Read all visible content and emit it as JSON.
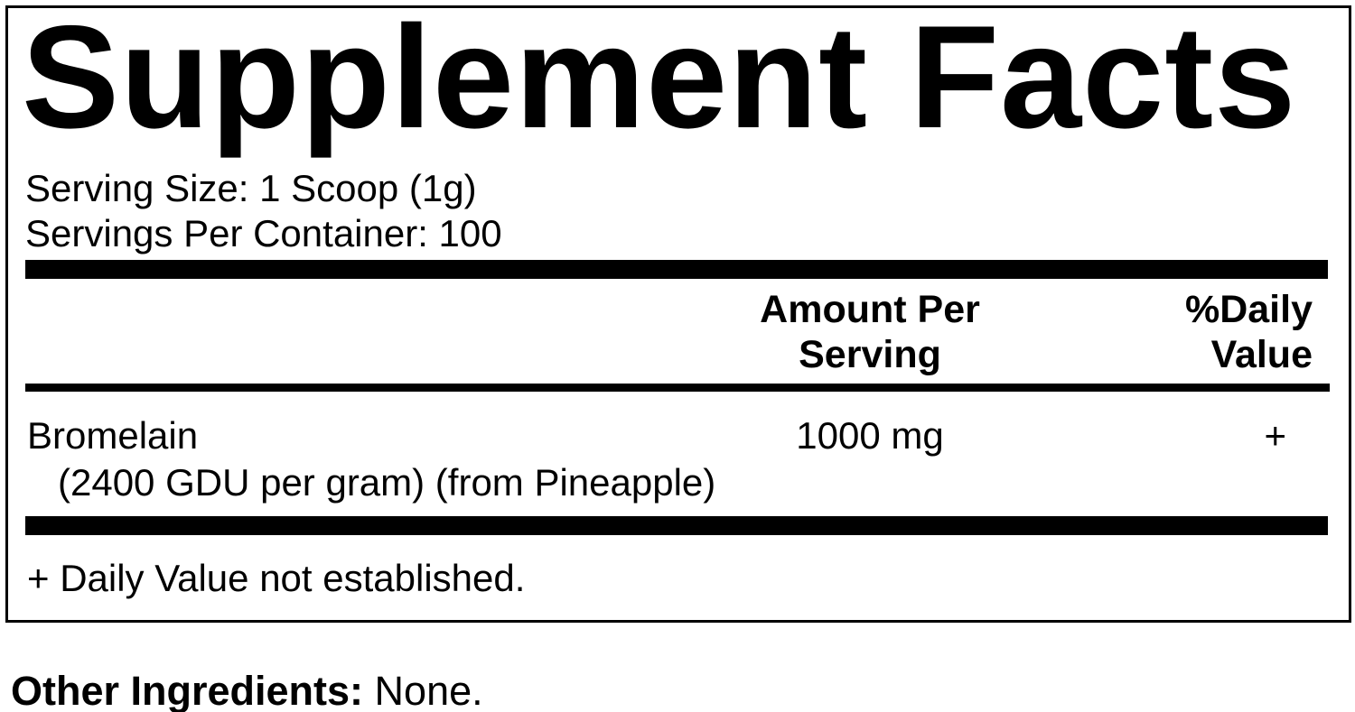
{
  "label": {
    "title": "Supplement Facts",
    "serving_size_line": "Serving Size: 1 Scoop (1g)",
    "servings_per_container_line": "Servings Per Container: 100",
    "columns": {
      "amount_header_line1": "Amount Per",
      "amount_header_line2": "Serving",
      "daily_value_header_line1": "%Daily",
      "daily_value_header_line2": "Value"
    },
    "rows": [
      {
        "name": "Bromelain",
        "detail": "(2400 GDU per gram) (from Pineapple)",
        "amount": "1000 mg",
        "daily_value": "+"
      }
    ],
    "footnote": "+ Daily Value not established.",
    "other_ingredients": {
      "label": "Other Ingredients:",
      "value": " None."
    }
  },
  "colors": {
    "ink": "#000000",
    "background": "#ffffff"
  }
}
